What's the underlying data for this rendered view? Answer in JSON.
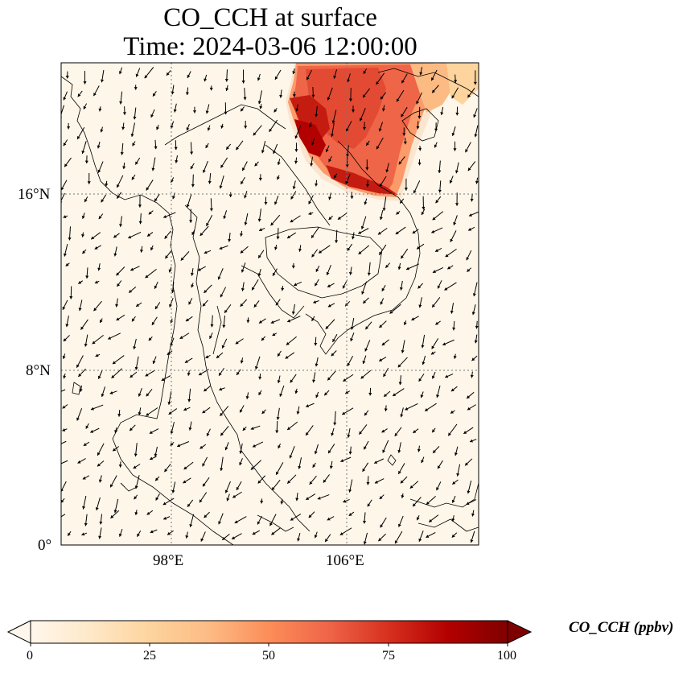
{
  "title": {
    "line1": "CO_CCH at surface",
    "line2": "Time: 2024-03-06 12:00:00"
  },
  "map": {
    "lat_ticks": [
      "16°N",
      "8°N",
      "0°"
    ],
    "lon_ticks": [
      "98°E",
      "106°E"
    ],
    "extent": {
      "lon_min": 93,
      "lon_max": 112,
      "lat_min": 0,
      "lat_max": 22
    },
    "gridlines": {
      "lons": [
        98,
        106
      ],
      "lats": [
        16,
        8
      ]
    },
    "plume": {
      "description_colors": [
        "#fef3e2",
        "#fdd49e",
        "#fc8d59",
        "#e34a33",
        "#b30000"
      ]
    }
  },
  "colorbar": {
    "label": "CO_CCH (ppbv)",
    "ticks": [
      "0",
      "25",
      "50",
      "75",
      "100"
    ],
    "min": 0,
    "max": 100,
    "colormap": [
      "#fff7ec",
      "#fee8c8",
      "#fdd49e",
      "#fdbb84",
      "#fc8d59",
      "#ef6548",
      "#d7301f",
      "#b30000",
      "#7f0000"
    ],
    "extend": "both"
  }
}
